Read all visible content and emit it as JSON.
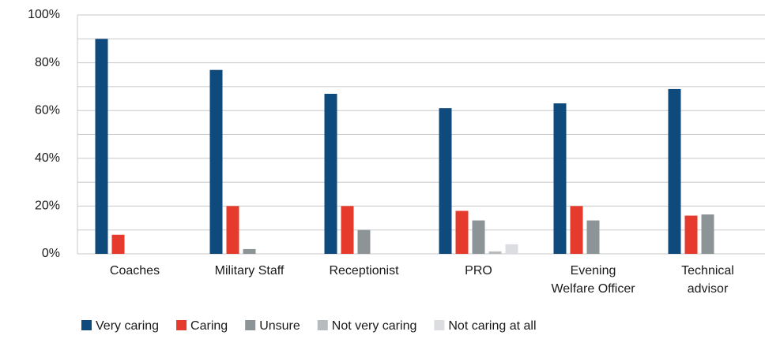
{
  "chart_data": {
    "type": "bar",
    "categories": [
      "Coaches",
      "Military Staff",
      "Receptionist",
      "PRO",
      "Evening\nWelfare Officer",
      "Technical\nadvisor"
    ],
    "series": [
      {
        "name": "Very caring",
        "color": "#0e4a7b",
        "values": [
          90,
          77,
          67,
          61,
          63,
          69
        ]
      },
      {
        "name": "Caring",
        "color": "#e63a2c",
        "values": [
          8,
          20,
          20,
          18,
          20,
          16
        ]
      },
      {
        "name": "Unsure",
        "color": "#8d9497",
        "values": [
          0,
          2,
          10,
          14,
          14,
          16.5
        ]
      },
      {
        "name": "Not very caring",
        "color": "#b8bbbd",
        "values": [
          0,
          0,
          0,
          1,
          0,
          0
        ]
      },
      {
        "name": "Not caring at all",
        "color": "#dcdde0",
        "values": [
          0,
          0,
          0,
          4,
          0,
          0
        ]
      }
    ],
    "ylim": [
      0,
      100
    ],
    "yticks": [
      {
        "value": 0,
        "label": "0%"
      },
      {
        "value": 20,
        "label": "20%"
      },
      {
        "value": 40,
        "label": "40%"
      },
      {
        "value": 60,
        "label": "60%"
      },
      {
        "value": 80,
        "label": "80%"
      },
      {
        "value": 100,
        "label": "100%"
      }
    ],
    "minor_yticks": [
      10,
      30,
      50,
      70,
      90
    ],
    "grid": true,
    "legend": "bottom"
  }
}
